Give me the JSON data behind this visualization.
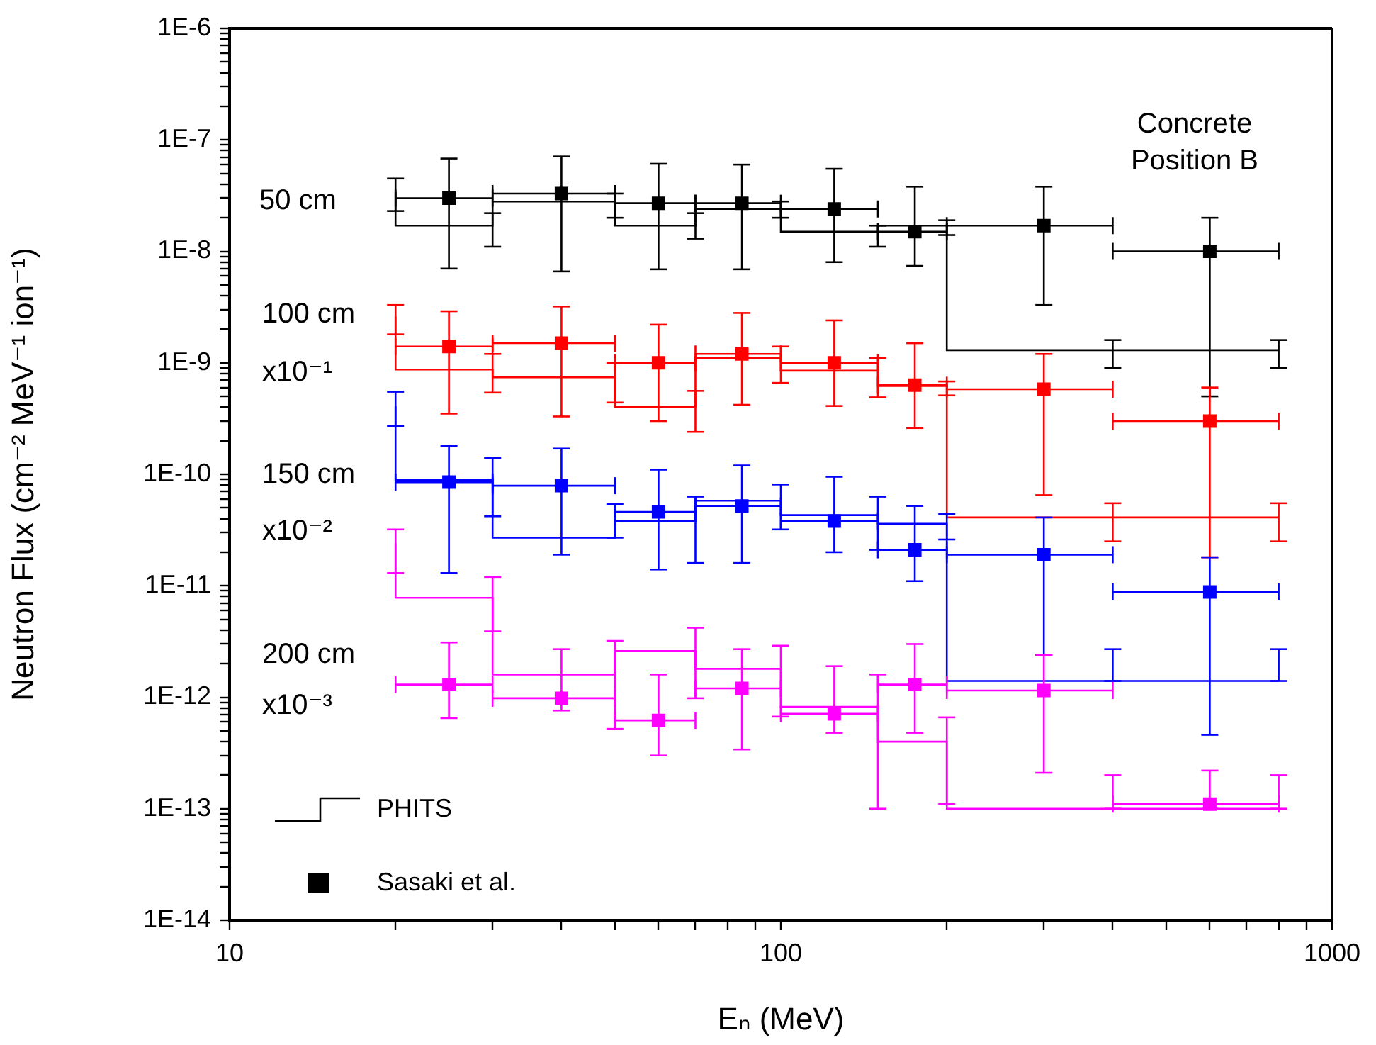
{
  "chart_data": {
    "type": "scatter",
    "xlabel": "Eₙ (MeV)",
    "ylabel": "Neutron Flux (cm⁻² MeV⁻¹ ion⁻¹)",
    "log": "xy",
    "legend": "bottom left",
    "xlim": [
      10,
      1000
    ],
    "xticks": [
      10,
      {
        "value": 20,
        "label": null
      },
      {
        "value": 30,
        "label": null
      },
      {
        "value": 40,
        "label": null
      },
      {
        "value": 50,
        "label": null
      },
      {
        "value": 60,
        "label": null
      },
      {
        "value": 70,
        "label": null
      },
      {
        "value": 80,
        "label": null
      },
      {
        "value": 90,
        "label": null
      },
      100,
      {
        "value": 200,
        "label": null
      },
      {
        "value": 300,
        "label": null
      },
      {
        "value": 400,
        "label": null
      },
      {
        "value": 500,
        "label": null
      },
      {
        "value": 600,
        "label": null
      },
      {
        "value": 700,
        "label": null
      },
      {
        "value": 800,
        "label": null
      },
      {
        "value": 900,
        "label": null
      },
      1000
    ],
    "ylim": [
      1e-14,
      1e-06
    ],
    "yticks": [
      {
        "value": 1e-14,
        "label": "1E-14"
      },
      {
        "value": 2e-14,
        "label": null
      },
      {
        "value": 3e-14,
        "label": null
      },
      {
        "value": 4e-14,
        "label": null
      },
      {
        "value": 5e-14,
        "label": null
      },
      {
        "value": 6e-14,
        "label": null
      },
      {
        "value": 7e-14,
        "label": null
      },
      {
        "value": 8e-14,
        "label": null
      },
      {
        "value": 9e-14,
        "label": null
      },
      {
        "value": 1e-13,
        "label": "1E-13"
      },
      {
        "value": 2e-13,
        "label": null
      },
      {
        "value": 3e-13,
        "label": null
      },
      {
        "value": 4e-13,
        "label": null
      },
      {
        "value": 5e-13,
        "label": null
      },
      {
        "value": 6e-13,
        "label": null
      },
      {
        "value": 7e-13,
        "label": null
      },
      {
        "value": 8e-13,
        "label": null
      },
      {
        "value": 9e-13,
        "label": null
      },
      {
        "value": 1e-12,
        "label": "1E-12"
      },
      {
        "value": 2e-12,
        "label": null
      },
      {
        "value": 3e-12,
        "label": null
      },
      {
        "value": 4e-12,
        "label": null
      },
      {
        "value": 5e-12,
        "label": null
      },
      {
        "value": 6e-12,
        "label": null
      },
      {
        "value": 7e-12,
        "label": null
      },
      {
        "value": 8e-12,
        "label": null
      },
      {
        "value": 9e-12,
        "label": null
      },
      {
        "value": 1e-11,
        "label": "1E-11"
      },
      {
        "value": 2e-11,
        "label": null
      },
      {
        "value": 3e-11,
        "label": null
      },
      {
        "value": 4e-11,
        "label": null
      },
      {
        "value": 5e-11,
        "label": null
      },
      {
        "value": 6e-11,
        "label": null
      },
      {
        "value": 7e-11,
        "label": null
      },
      {
        "value": 8e-11,
        "label": null
      },
      {
        "value": 9e-11,
        "label": null
      },
      {
        "value": 1e-10,
        "label": "1E-10"
      },
      {
        "value": 2e-10,
        "label": null
      },
      {
        "value": 3e-10,
        "label": null
      },
      {
        "value": 4e-10,
        "label": null
      },
      {
        "value": 5e-10,
        "label": null
      },
      {
        "value": 6e-10,
        "label": null
      },
      {
        "value": 7e-10,
        "label": null
      },
      {
        "value": 8e-10,
        "label": null
      },
      {
        "value": 9e-10,
        "label": null
      },
      {
        "value": 1e-09,
        "label": "1E-9"
      },
      {
        "value": 2e-09,
        "label": null
      },
      {
        "value": 3e-09,
        "label": null
      },
      {
        "value": 4e-09,
        "label": null
      },
      {
        "value": 5e-09,
        "label": null
      },
      {
        "value": 6e-09,
        "label": null
      },
      {
        "value": 7e-09,
        "label": null
      },
      {
        "value": 8e-09,
        "label": null
      },
      {
        "value": 9e-09,
        "label": null
      },
      {
        "value": 1e-08,
        "label": "1E-8"
      },
      {
        "value": 2e-08,
        "label": null
      },
      {
        "value": 3e-08,
        "label": null
      },
      {
        "value": 4e-08,
        "label": null
      },
      {
        "value": 5e-08,
        "label": null
      },
      {
        "value": 6e-08,
        "label": null
      },
      {
        "value": 7e-08,
        "label": null
      },
      {
        "value": 8e-08,
        "label": null
      },
      {
        "value": 9e-08,
        "label": null
      },
      {
        "value": 1e-07,
        "label": "1E-7"
      },
      {
        "value": 2e-07,
        "label": null
      },
      {
        "value": 3e-07,
        "label": null
      },
      {
        "value": 4e-07,
        "label": null
      },
      {
        "value": 5e-07,
        "label": null
      },
      {
        "value": 6e-07,
        "label": null
      },
      {
        "value": 7e-07,
        "label": null
      },
      {
        "value": 8e-07,
        "label": null
      },
      {
        "value": 9e-07,
        "label": null
      },
      {
        "value": 1e-06,
        "label": "1E-6"
      }
    ],
    "series": [
      {
        "name": "PHITS",
        "type": "step",
        "color": "#000000",
        "x": [
          20,
          30,
          50,
          70,
          100,
          150,
          200,
          400,
          800
        ],
        "values": [
          3.4e-08,
          1.7e-08,
          2.8e-08,
          1.7e-08,
          2.4e-08,
          1.5e-08,
          1.7e-08,
          1.3e-09,
          1.3e-09
        ],
        "errors": [
          [
            2.3e-08,
            4.5e-08
          ],
          [
            1.1e-08,
            2.2e-08
          ],
          [
            2e-08,
            3.3e-08
          ],
          [
            1.3e-08,
            2.2e-08
          ],
          [
            2e-08,
            2.8e-08
          ],
          [
            1.1e-08,
            1.7e-08
          ],
          [
            1.4e-08,
            1.9e-08
          ],
          [
            9e-10,
            1.6e-09
          ],
          [
            9e-10,
            1.6e-09
          ]
        ]
      },
      {
        "name": "Sasaki et al.",
        "marker": "square",
        "color": "#000000",
        "x": [
          25,
          40,
          60,
          85,
          125,
          175,
          300,
          600
        ],
        "values": [
          3e-08,
          3.3e-08,
          2.7e-08,
          2.7e-08,
          2.4e-08,
          1.5e-08,
          1.7e-08,
          1e-08
        ],
        "errors": [
          [
            7e-09,
            6.8e-08
          ],
          [
            6.6e-09,
            7.1e-08
          ],
          [
            6.9e-09,
            6.1e-08
          ],
          [
            6.9e-09,
            6e-08
          ],
          [
            8e-09,
            5.5e-08
          ],
          [
            7.4e-09,
            3.8e-08
          ],
          [
            3.3e-09,
            3.8e-08
          ],
          [
            5e-10,
            2e-08
          ]
        ],
        "xerrors": [
          [
            20,
            30
          ],
          [
            30,
            50
          ],
          [
            50,
            70
          ],
          [
            70,
            100
          ],
          [
            100,
            150
          ],
          [
            150,
            200
          ],
          [
            200,
            400
          ],
          [
            400,
            800
          ]
        ]
      },
      {
        "type": "step",
        "color": "#ff0000",
        "x": [
          20,
          30,
          50,
          70,
          100,
          150,
          200,
          400,
          800
        ],
        "values": [
          2.6e-09,
          8.7e-10,
          7.4e-10,
          4e-10,
          1.1e-09,
          8.5e-10,
          6.2e-10,
          4.1e-11,
          4.1e-11
        ],
        "errors": [
          [
            1.8e-09,
            3.3e-09
          ],
          [
            5.4e-10,
            1.2e-09
          ],
          [
            4.4e-10,
            1e-09
          ],
          [
            2.4e-10,
            5.6e-10
          ],
          [
            6.6e-10,
            1.4e-09
          ],
          [
            4.9e-10,
            1.1e-09
          ],
          [
            5.1e-10,
            6.8e-10
          ],
          [
            2.5e-11,
            5.5e-11
          ],
          [
            2.5e-11,
            5.5e-11
          ]
        ]
      },
      {
        "marker": "square",
        "color": "#ff0000",
        "x": [
          25,
          40,
          60,
          85,
          125,
          175,
          300,
          600
        ],
        "values": [
          1.4e-09,
          1.5e-09,
          1e-09,
          1.2e-09,
          1e-09,
          6.3e-10,
          5.8e-10,
          3e-10
        ],
        "errors": [
          [
            3.5e-10,
            2.9e-09
          ],
          [
            3.3e-10,
            3.2e-09
          ],
          [
            3e-10,
            2.2e-09
          ],
          [
            4.2e-10,
            2.8e-09
          ],
          [
            4.1e-10,
            2.4e-09
          ],
          [
            2.6e-10,
            1.5e-09
          ],
          [
            6.5e-11,
            1.2e-09
          ],
          [
            1.8e-11,
            6e-10
          ]
        ],
        "xerrors": [
          [
            20,
            30
          ],
          [
            30,
            50
          ],
          [
            50,
            70
          ],
          [
            70,
            100
          ],
          [
            100,
            150
          ],
          [
            150,
            200
          ],
          [
            200,
            400
          ],
          [
            400,
            800
          ]
        ]
      },
      {
        "type": "step",
        "color": "#0000ff",
        "x": [
          20,
          30,
          50,
          70,
          100,
          150,
          200,
          400,
          800
        ],
        "values": [
          4.1e-10,
          8.9e-11,
          2.7e-11,
          3.8e-11,
          5.8e-11,
          4.3e-11,
          3.6e-11,
          1.4e-12,
          1.4e-12
        ],
        "errors": [
          [
            2.7e-10,
            5.5e-10
          ],
          [
            4.2e-11,
            1.4e-10
          ],
          [
            2.7e-11,
            5.4e-11
          ],
          [
            1.6e-11,
            6.3e-11
          ],
          [
            3.2e-11,
            8.1e-11
          ],
          [
            2.1e-11,
            6.3e-11
          ],
          [
            2.6e-11,
            4.4e-11
          ],
          [
            1.4e-12,
            2.7e-12
          ],
          [
            1.4e-12,
            2.7e-12
          ]
        ]
      },
      {
        "marker": "square",
        "color": "#0000ff",
        "x": [
          25,
          40,
          60,
          85,
          125,
          175,
          300,
          600
        ],
        "values": [
          8.5e-11,
          7.9e-11,
          4.6e-11,
          5.2e-11,
          3.8e-11,
          2.1e-11,
          1.9e-11,
          8.8e-12
        ],
        "errors": [
          [
            1.3e-11,
            1.8e-10
          ],
          [
            1.9e-11,
            1.7e-10
          ],
          [
            1.4e-11,
            1.1e-10
          ],
          [
            1.6e-11,
            1.2e-10
          ],
          [
            2e-11,
            9.5e-11
          ],
          [
            1.1e-11,
            5.2e-11
          ],
          [
            2.4e-12,
            4.1e-11
          ],
          [
            4.6e-13,
            1.8e-11
          ]
        ],
        "xerrors": [
          [
            20,
            30
          ],
          [
            30,
            50
          ],
          [
            50,
            70
          ],
          [
            70,
            100
          ],
          [
            100,
            150
          ],
          [
            150,
            200
          ],
          [
            200,
            400
          ],
          [
            400,
            800
          ]
        ]
      },
      {
        "type": "step",
        "color": "#ff00ff",
        "x": [
          20,
          30,
          50,
          70,
          100,
          150,
          200,
          400,
          800
        ],
        "values": [
          2.4e-11,
          7.8e-12,
          1.6e-12,
          2.6e-12,
          1.8e-12,
          8.2e-13,
          4e-13,
          1e-13,
          1e-13
        ],
        "errors": [
          [
            1.3e-11,
            3.2e-11
          ],
          [
            3.9e-12,
            1.2e-11
          ],
          [
            5.2e-13,
            3.2e-12
          ],
          [
            9.8e-13,
            4.2e-12
          ],
          [
            6.7e-13,
            2.9e-12
          ],
          [
            1e-13,
            1.6e-12
          ],
          [
            1.1e-13,
            6.6e-13
          ],
          [
            1e-13,
            2e-13
          ],
          [
            1e-13,
            2e-13
          ]
        ]
      },
      {
        "marker": "square",
        "color": "#ff00ff",
        "x": [
          25,
          40,
          60,
          85,
          125,
          175,
          300,
          600
        ],
        "values": [
          1.3e-12,
          9.8e-13,
          6.2e-13,
          1.2e-12,
          7.1e-13,
          1.3e-12,
          1.15e-12,
          1.1e-13
        ],
        "errors": [
          [
            6.5e-13,
            3.1e-12
          ],
          [
            7.6e-13,
            2.7e-12
          ],
          [
            3e-13,
            1.6e-12
          ],
          [
            3.4e-13,
            2.7e-12
          ],
          [
            4.8e-13,
            1.9e-12
          ],
          [
            4.8e-13,
            3e-12
          ],
          [
            2.1e-13,
            2.4e-12
          ],
          [
            1e-13,
            2.2e-13
          ]
        ],
        "xerrors": [
          [
            20,
            30
          ],
          [
            30,
            50
          ],
          [
            50,
            70
          ],
          [
            70,
            100
          ],
          [
            100,
            150
          ],
          [
            150,
            200
          ],
          [
            200,
            400
          ],
          [
            400,
            800
          ]
        ]
      }
    ],
    "annotations": [
      "Concrete",
      "Position B",
      "50 cm",
      "100 cm",
      "x10⁻¹",
      "150 cm",
      "x10⁻²",
      "200 cm",
      "x10⁻³"
    ]
  }
}
